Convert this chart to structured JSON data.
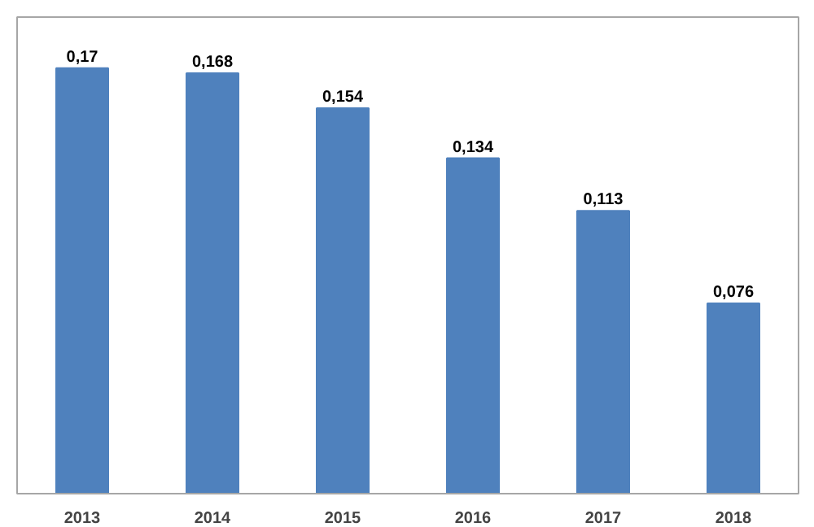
{
  "chart_data": {
    "type": "bar",
    "categories": [
      "2013",
      "2014",
      "2015",
      "2016",
      "2017",
      "2018"
    ],
    "values": [
      0.17,
      0.168,
      0.154,
      0.134,
      0.113,
      0.076
    ],
    "value_labels": [
      "0,17",
      "0,168",
      "0,154",
      "0,134",
      "0,113",
      "0,076"
    ],
    "color": "#4f81bd",
    "grid": false
  }
}
